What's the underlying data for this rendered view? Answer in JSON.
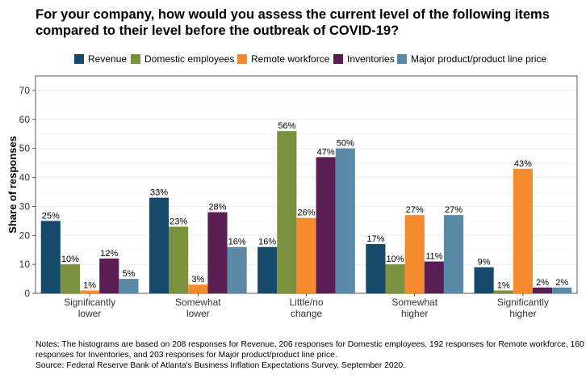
{
  "title": "For your company, how would you assess the current level of the following items compared to their level before the outbreak of COVID-19?",
  "notes": [
    "Notes: The histograms are based on 208 responses for Revenue, 206 responses for Domestic employees, 192 responses for Remote workforce, 160 responses for Inventories, and 203 responses for Major product/product line price.",
    "Source: Federal Reserve Bank of Atlanta's Business Inflation Expectations Survey, September 2020."
  ],
  "chart_data": {
    "type": "bar",
    "title": "For your company, how would you assess the current level of the following items compared to their level before the outbreak of COVID-19?",
    "xlabel": "",
    "ylabel": "Share of responses",
    "ylim": [
      0,
      75
    ],
    "yticks": [
      0,
      10,
      20,
      30,
      40,
      50,
      60,
      70
    ],
    "grid": true,
    "legend_position": "top",
    "categories": [
      [
        "Significantly",
        "lower"
      ],
      [
        "Somewhat",
        "lower"
      ],
      [
        "Little/no",
        "change"
      ],
      [
        "Somewhat",
        "higher"
      ],
      [
        "Significantly",
        "higher"
      ]
    ],
    "series": [
      {
        "name": "Revenue",
        "color": "#154a6b",
        "values": [
          25,
          33,
          16,
          17,
          9
        ],
        "labels": [
          "25%",
          "33%",
          "16%",
          "17%",
          "9%"
        ]
      },
      {
        "name": "Domestic employees",
        "color": "#7a913d",
        "values": [
          10,
          23,
          56,
          10,
          1
        ],
        "labels": [
          "10%",
          "23%",
          "56%",
          "10%",
          "1%"
        ]
      },
      {
        "name": "Remote workforce",
        "color": "#f58b2e",
        "values": [
          1,
          3,
          26,
          27,
          43
        ],
        "labels": [
          "1%",
          "3%",
          "26%",
          "27%",
          "43%"
        ]
      },
      {
        "name": "Inventories",
        "color": "#5a1f52",
        "values": [
          12,
          28,
          47,
          11,
          2
        ],
        "labels": [
          "12%",
          "28%",
          "47%",
          "11%",
          "2%"
        ]
      },
      {
        "name": "Major product/product line price",
        "color": "#5a8aa8",
        "values": [
          5,
          16,
          50,
          27,
          2
        ],
        "labels": [
          "5%",
          "16%",
          "50%",
          "27%",
          "2%"
        ]
      }
    ]
  }
}
